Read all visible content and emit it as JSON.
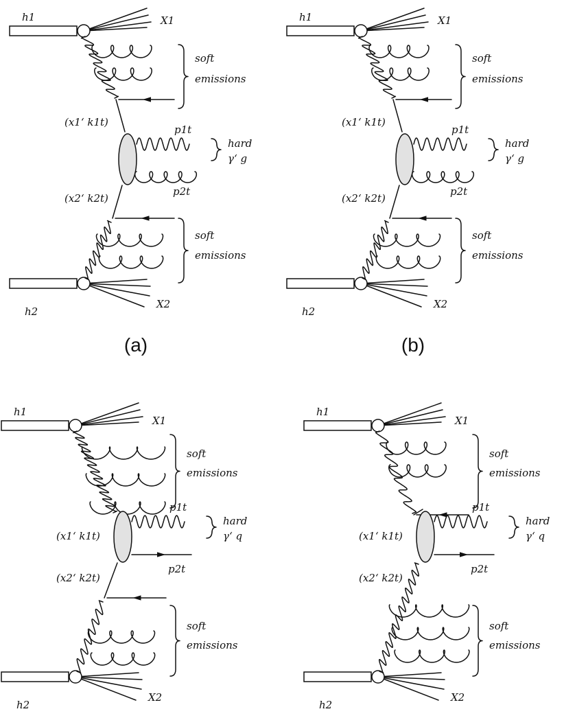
{
  "panels": [
    {
      "id": "a",
      "caption": "(a)",
      "h_top": "h1",
      "x_top": "X1",
      "h_bot": "h2",
      "x_bot": "X2",
      "soft_top": [
        "soft",
        "emissions"
      ],
      "soft_bot": [
        "soft",
        "emissions"
      ],
      "k1": "(x1‘ k1t)",
      "k2": "(x2‘ k2t)",
      "p1": "p1t",
      "p2": "p2t",
      "hard": [
        "hard",
        "γ‘ g"
      ]
    },
    {
      "id": "b",
      "caption": "(b)",
      "h_top": "h1",
      "x_top": "X1",
      "h_bot": "h2",
      "x_bot": "X2",
      "soft_top": [
        "soft",
        "emissions"
      ],
      "soft_bot": [
        "soft",
        "emissions"
      ],
      "k1": "(x1‘ k1t)",
      "k2": "(x2‘ k2t)",
      "p1": "p1t",
      "p2": "p2t",
      "hard": [
        "hard",
        "γ‘ g"
      ]
    },
    {
      "id": "c",
      "caption": "",
      "h_top": "h1",
      "x_top": "X1",
      "h_bot": "h2",
      "x_bot": "X2",
      "soft_top": [
        "soft",
        "emissions"
      ],
      "soft_bot": [
        "soft",
        "emissions"
      ],
      "k1": "(x1‘ k1t)",
      "k2": "(x2‘ k2t)",
      "p1": "p1t",
      "p2": "p2t",
      "hard": [
        "hard",
        "γ‘ q"
      ]
    },
    {
      "id": "d",
      "caption": "",
      "h_top": "h1",
      "x_top": "X1",
      "h_bot": "h2",
      "x_bot": "X2",
      "soft_top": [
        "soft",
        "emissions"
      ],
      "soft_bot": [
        "soft",
        "emissions"
      ],
      "k1": "(x1‘ k1t)",
      "k2": "(x2‘ k2t)",
      "p1": "p1t",
      "p2": "p2t",
      "hard": [
        "hard",
        "γ‘ q"
      ]
    }
  ]
}
